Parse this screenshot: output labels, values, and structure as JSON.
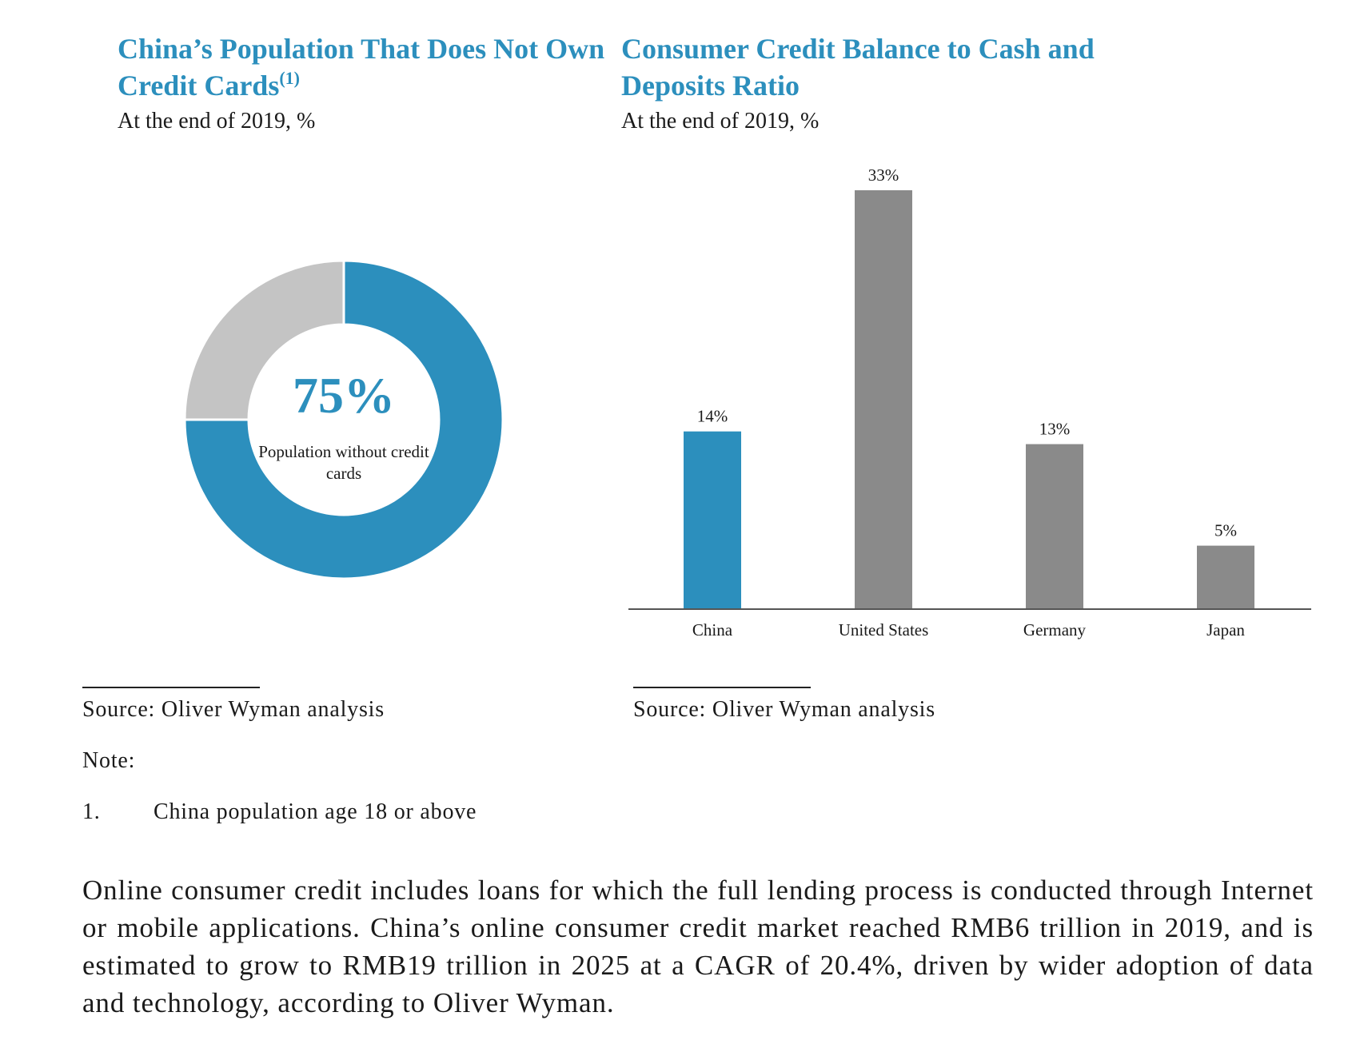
{
  "colors": {
    "accent": "#2c8fbd",
    "gray_slice": "#c4c4c4",
    "gray_bar": "#8a8a8a",
    "axis": "#555555"
  },
  "left_panel": {
    "title": "China’s Population That Does Not Own Credit Cards",
    "title_superscript": "(1)",
    "subtitle": "At the end of 2019, %",
    "source": "Source: Oliver Wyman analysis",
    "note_label": "Note:",
    "note_number": "1.",
    "note_text": "China population age 18 or above"
  },
  "right_panel": {
    "title": "Consumer Credit Balance to Cash and Deposits Ratio",
    "subtitle": "At the end of 2019, %",
    "source": "Source: Oliver Wyman analysis"
  },
  "chart_data": [
    {
      "type": "pie",
      "variant": "donut",
      "title": "China’s Population That Does Not Own Credit Cards",
      "subtitle": "At the end of 2019, %",
      "slices": [
        {
          "value": 75,
          "color": "#2c8fbd"
        },
        {
          "value": 25,
          "color": "#c4c4c4"
        }
      ],
      "center_value": "75%",
      "center_label": "Population without credit cards"
    },
    {
      "type": "bar",
      "title": "Consumer Credit Balance to Cash and Deposits Ratio",
      "subtitle": "At the end of 2019, %",
      "categories": [
        "China",
        "United States",
        "Germany",
        "Japan"
      ],
      "values": [
        14,
        33,
        13,
        5
      ],
      "data_labels": [
        "14%",
        "33%",
        "13%",
        "5%"
      ],
      "colors": [
        "#2c8fbd",
        "#8a8a8a",
        "#8a8a8a",
        "#8a8a8a"
      ],
      "ylim": [
        0,
        33
      ],
      "grid": false,
      "legend": "none",
      "xlabel": "",
      "ylabel": ""
    }
  ],
  "paragraph": "Online consumer credit includes loans for which the full lending process is conducted through Internet or mobile applications. China’s online consumer credit market reached RMB6 trillion in 2019, and is estimated to grow to RMB19 trillion in 2025 at a CAGR of 20.4%, driven by wider adoption of data and technology, according to Oliver Wyman."
}
